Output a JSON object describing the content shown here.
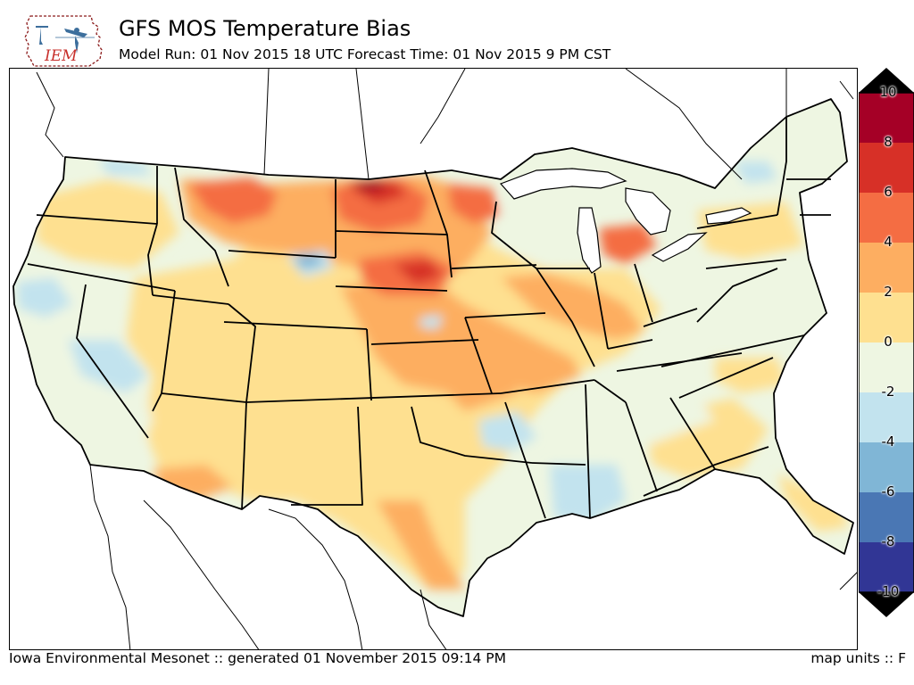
{
  "header": {
    "logo_text": "IEM",
    "title": "GFS MOS Temperature Bias",
    "subtitle": "Model Run: 01 Nov 2015 18 UTC Forecast Time: 01 Nov 2015 9 PM CST"
  },
  "colorbar": {
    "labels": [
      "10",
      "8",
      "6",
      "4",
      "2",
      "0",
      "-2",
      "-4",
      "-6",
      "-8",
      "-10"
    ],
    "bins": [
      {
        "range": [
          8,
          10
        ],
        "color": "#a50026"
      },
      {
        "range": [
          6,
          8
        ],
        "color": "#d73027"
      },
      {
        "range": [
          4,
          6
        ],
        "color": "#f46d43"
      },
      {
        "range": [
          2,
          4
        ],
        "color": "#fdae61"
      },
      {
        "range": [
          0,
          2
        ],
        "color": "#fee090"
      },
      {
        "range": [
          -2,
          0
        ],
        "color": "#eef6e2"
      },
      {
        "range": [
          -4,
          -2
        ],
        "color": "#c2e3ee"
      },
      {
        "range": [
          -6,
          -4
        ],
        "color": "#80b6d6"
      },
      {
        "range": [
          -8,
          -6
        ],
        "color": "#4a77b4"
      },
      {
        "range": [
          -10,
          -8
        ],
        "color": "#313695"
      }
    ],
    "extend_color": "#000000"
  },
  "map": {
    "field": "temperature_bias",
    "units": "F",
    "dominant_bin": "0 to 2",
    "warm_maxima": [
      "North Dakota",
      "Nebraska",
      "Michigan"
    ],
    "cool_areas": [
      "Louisiana",
      "Nevada",
      "Wyoming"
    ]
  },
  "footer": {
    "left": "Iowa Environmental Mesonet :: generated 01 November 2015 09:14 PM",
    "right": "map units :: F"
  }
}
